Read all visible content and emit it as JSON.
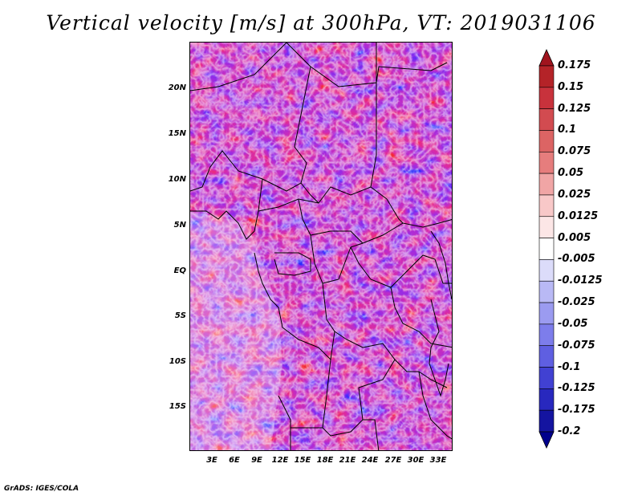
{
  "title": "Vertical velocity [m/s] at 300hPa, VT: 2019031106",
  "footer": "GrADS: IGES/COLA",
  "map": {
    "lat_range": [
      -19,
      25
    ],
    "lon_range": [
      0,
      35
    ],
    "lat_ticks": [
      "20N",
      "15N",
      "10N",
      "5N",
      "EQ",
      "5S",
      "10S",
      "15S"
    ],
    "lon_ticks": [
      "3E",
      "6E",
      "9E",
      "12E",
      "15E",
      "18E",
      "21E",
      "24E",
      "27E",
      "30E",
      "33E"
    ],
    "variable": "vertical velocity",
    "units": "m/s",
    "level": "300hPa",
    "valid_time": "2019031106"
  },
  "colorbar": {
    "labels": [
      "0.175",
      "0.15",
      "0.125",
      "0.1",
      "0.075",
      "0.05",
      "0.025",
      "0.0125",
      "0.005",
      "-0.005",
      "-0.0125",
      "-0.025",
      "-0.05",
      "-0.075",
      "-0.1",
      "-0.125",
      "-0.175",
      "-0.2"
    ],
    "colors": [
      "#a0141e",
      "#b42328",
      "#c8323c",
      "#d24b50",
      "#dc6464",
      "#e67d7d",
      "#f0a5a5",
      "#f8c8c8",
      "#fce6e6",
      "#ffffff",
      "#dcdcfa",
      "#b9b9f5",
      "#9b9bf0",
      "#7d7deb",
      "#5f5fe1",
      "#4141d2",
      "#2828be",
      "#1414a0",
      "#00008c"
    ]
  }
}
